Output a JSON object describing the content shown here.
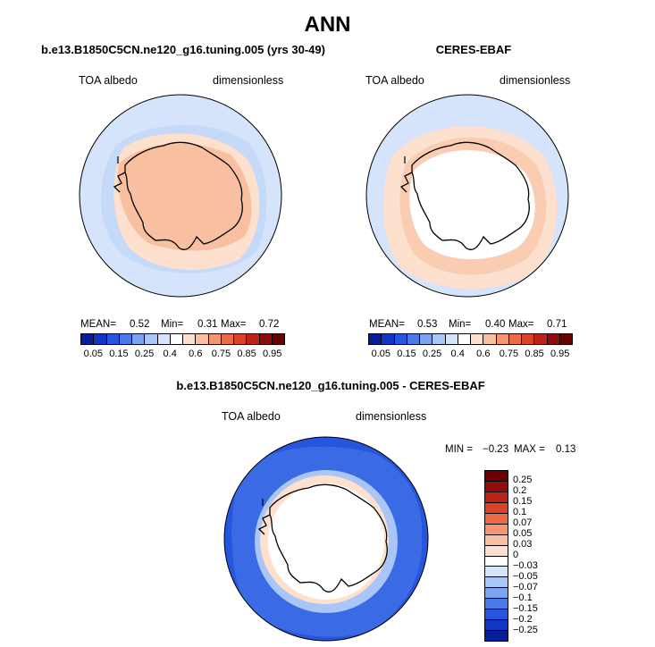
{
  "figure_title": "ANN",
  "colors": {
    "diverging": [
      "#081d9a",
      "#1236c4",
      "#2655de",
      "#4a7ae8",
      "#7ca3f0",
      "#a9c6f7",
      "#d5e3fb",
      "#ffffff",
      "#fde0cd",
      "#f9bfa1",
      "#f4966f",
      "#ec6a46",
      "#db4226",
      "#bd2418",
      "#8f0d0d",
      "#6b0000"
    ],
    "land_edge": "#000000"
  },
  "panels": [
    {
      "title": "b.e13.B1850C5CN.ne120_g16.tuning.005 (yrs 30-49)",
      "variable": "TOA albedo",
      "units": "dimensionless",
      "mean_label": "MEAN=",
      "mean": "0.52",
      "min_label": "Min=",
      "min": "0.31",
      "max_label": "Max=",
      "max": "0.72",
      "colorbar_ticks": [
        "0.05",
        "0.15",
        "0.25",
        "0.4",
        "0.6",
        "0.75",
        "0.85",
        "0.95"
      ]
    },
    {
      "title": "CERES-EBAF",
      "variable": "TOA albedo",
      "units": "dimensionless",
      "mean_label": "MEAN=",
      "mean": "0.53",
      "min_label": "Min=",
      "min": "0.40",
      "max_label": "Max=",
      "max": "0.71",
      "colorbar_ticks": [
        "0.05",
        "0.15",
        "0.25",
        "0.4",
        "0.6",
        "0.75",
        "0.85",
        "0.95"
      ]
    },
    {
      "title": "b.e13.B1850C5CN.ne120_g16.tuning.005 - CERES-EBAF",
      "variable": "TOA albedo",
      "units": "dimensionless",
      "min_label": "MIN =",
      "min": "−0.23",
      "max_label": "MAX =",
      "max": "0.13",
      "colorbar_ticks": [
        "0.25",
        "0.2",
        "0.15",
        "0.1",
        "0.07",
        "0.05",
        "0.03",
        "0",
        "−0.03",
        "−0.05",
        "−0.07",
        "−0.1",
        "−0.15",
        "−0.2",
        "−0.25"
      ]
    }
  ]
}
